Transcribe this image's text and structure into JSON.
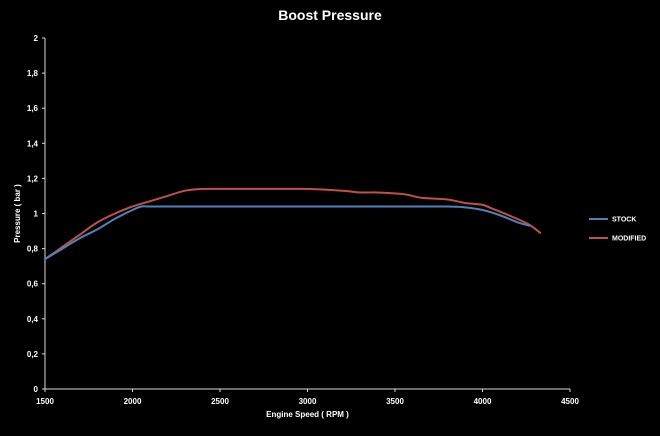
{
  "chart_data": {
    "type": "line",
    "title": "Boost Pressure",
    "xlabel": "Engine Speed ( RPM )",
    "ylabel": "Pressure ( bar )",
    "xlim": [
      1500,
      4500
    ],
    "ylim": [
      0,
      2
    ],
    "x_ticks": [
      1500,
      2000,
      2500,
      3000,
      3500,
      4000,
      4500
    ],
    "y_ticks": [
      0,
      0.2,
      0.4,
      0.6,
      0.8,
      1,
      1.2,
      1.4,
      1.6,
      1.8,
      2
    ],
    "x_tick_labels": [
      "1500",
      "2000",
      "2500",
      "3000",
      "3500",
      "4000",
      "4500"
    ],
    "y_tick_labels": [
      "0",
      "0,2",
      "0,4",
      "0,6",
      "0,8",
      "1",
      "1,2",
      "1,4",
      "1,6",
      "1,8",
      "2"
    ],
    "grid": false,
    "legend_position": "right",
    "series": [
      {
        "name": "STOCK",
        "color": "#4F81BD",
        "points": [
          [
            1500,
            0.74
          ],
          [
            1600,
            0.8
          ],
          [
            1700,
            0.86
          ],
          [
            1800,
            0.91
          ],
          [
            1900,
            0.97
          ],
          [
            2000,
            1.02
          ],
          [
            2050,
            1.04
          ],
          [
            2100,
            1.04
          ],
          [
            2200,
            1.04
          ],
          [
            2500,
            1.04
          ],
          [
            3000,
            1.04
          ],
          [
            3500,
            1.04
          ],
          [
            3800,
            1.04
          ],
          [
            3900,
            1.035
          ],
          [
            4000,
            1.02
          ],
          [
            4100,
            0.99
          ],
          [
            4200,
            0.95
          ],
          [
            4270,
            0.93
          ]
        ]
      },
      {
        "name": "MODIFIED",
        "color": "#C0504D",
        "points": [
          [
            1500,
            0.74
          ],
          [
            1600,
            0.81
          ],
          [
            1700,
            0.88
          ],
          [
            1800,
            0.95
          ],
          [
            1900,
            1.0
          ],
          [
            2000,
            1.04
          ],
          [
            2100,
            1.07
          ],
          [
            2200,
            1.1
          ],
          [
            2300,
            1.13
          ],
          [
            2400,
            1.14
          ],
          [
            2500,
            1.14
          ],
          [
            2700,
            1.14
          ],
          [
            2900,
            1.14
          ],
          [
            3000,
            1.14
          ],
          [
            3200,
            1.13
          ],
          [
            3300,
            1.12
          ],
          [
            3400,
            1.12
          ],
          [
            3550,
            1.11
          ],
          [
            3650,
            1.09
          ],
          [
            3800,
            1.08
          ],
          [
            3900,
            1.06
          ],
          [
            4000,
            1.05
          ],
          [
            4050,
            1.03
          ],
          [
            4150,
            0.99
          ],
          [
            4260,
            0.94
          ],
          [
            4330,
            0.89
          ]
        ]
      }
    ]
  }
}
